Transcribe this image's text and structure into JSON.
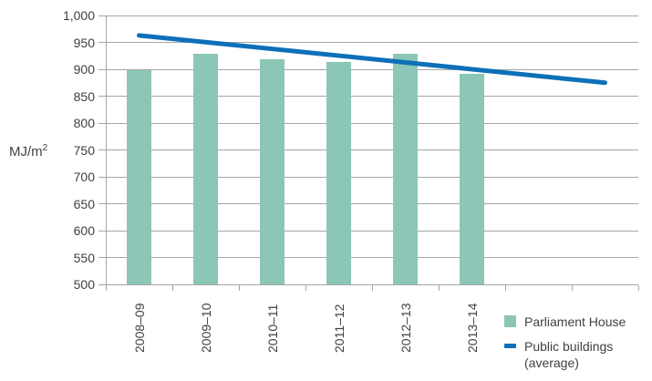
{
  "chart_data": {
    "type": "bar",
    "subtype": "bar-with-trend-line",
    "title": "",
    "ylabel_base": "MJ/m",
    "ylabel_sup": "2",
    "ylim": [
      500,
      1000
    ],
    "ytick_step": 50,
    "ytick_labels": [
      "500",
      "550",
      "600",
      "650",
      "700",
      "750",
      "800",
      "850",
      "900",
      "950",
      "1,000"
    ],
    "categories": [
      "2008–09",
      "2009–10",
      "2010–11",
      "2011–12",
      "2012–13",
      "2013–14"
    ],
    "x_slots": 8,
    "grid": true,
    "legend_position": "bottom-right",
    "series": [
      {
        "name": "Parliament House",
        "type": "bar",
        "color": "#8BC6B6",
        "values": [
          898,
          928,
          918,
          914,
          929,
          892
        ]
      },
      {
        "name": "Public buildings (average)",
        "type": "line",
        "color": "#0D70B8",
        "trend": {
          "start_slot": 0,
          "end_slot": 7,
          "start_value": 963,
          "end_value": 875
        }
      }
    ]
  },
  "legend": {
    "items": [
      {
        "label": "Parliament House",
        "marker": "square",
        "color": "#8BC6B6"
      },
      {
        "label_line1": "Public buildings",
        "label_line2": "(average)",
        "marker": "dash",
        "color": "#0D70B8"
      }
    ]
  },
  "colors": {
    "bar": "#8BC6B6",
    "line": "#0D70B8",
    "grid": "#a6a6a8",
    "text": "#414042",
    "background": "#ffffff"
  }
}
